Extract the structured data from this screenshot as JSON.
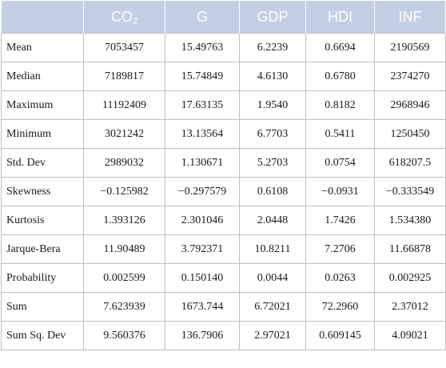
{
  "table": {
    "columns": [
      {
        "base": "CO",
        "sub": "2"
      },
      {
        "base": "G",
        "sub": ""
      },
      {
        "base": "GDP",
        "sub": ""
      },
      {
        "base": "HDI",
        "sub": ""
      },
      {
        "base": "INF",
        "sub": ""
      }
    ],
    "rows": [
      {
        "label": "Mean",
        "values": [
          "7053457",
          "15.49763",
          "6.2239",
          "0.6694",
          "2190569"
        ]
      },
      {
        "label": "Median",
        "values": [
          "7189817",
          "15.74849",
          "4.6130",
          "0.6780",
          "2374270"
        ]
      },
      {
        "label": "Maximum",
        "values": [
          "11192409",
          "17.63135",
          "1.9540",
          "0.8182",
          "2968946"
        ]
      },
      {
        "label": "Minimum",
        "values": [
          "3021242",
          "13.13564",
          "6.7703",
          "0.5411",
          "1250450"
        ]
      },
      {
        "label": "Std. Dev",
        "values": [
          "2989032",
          "1.130671",
          "5.2703",
          "0.0754",
          "618207.5"
        ]
      },
      {
        "label": "Skewness",
        "values": [
          "−0.125982",
          "−0.297579",
          "0.6108",
          "−0.0931",
          "−0.333549"
        ]
      },
      {
        "label": "Kurtosis",
        "values": [
          "1.393126",
          "2.301046",
          "2.0448",
          "1.7426",
          "1.534380"
        ]
      },
      {
        "label": "Jarque-Bera",
        "values": [
          "11.90489",
          "3.792371",
          "10.8211",
          "7.2706",
          "11.66878"
        ]
      },
      {
        "label": "Probability",
        "values": [
          "0.002599",
          "0.150140",
          "0.0044",
          "0.0263",
          "0.002925"
        ]
      },
      {
        "label": "Sum",
        "values": [
          "7.623939",
          "1673.744",
          "6.72021",
          "72.2960",
          "2.37012"
        ]
      },
      {
        "label": "Sum Sq. Dev",
        "values": [
          "9.560376",
          "136.7906",
          "2.97021",
          "0.609145",
          "4.09021"
        ]
      }
    ]
  },
  "colors": {
    "header_background": "#c3cfe4",
    "header_text": "#ffffff",
    "grid_lines": "#bfbfbf",
    "body_text": "#1a1a1a"
  }
}
